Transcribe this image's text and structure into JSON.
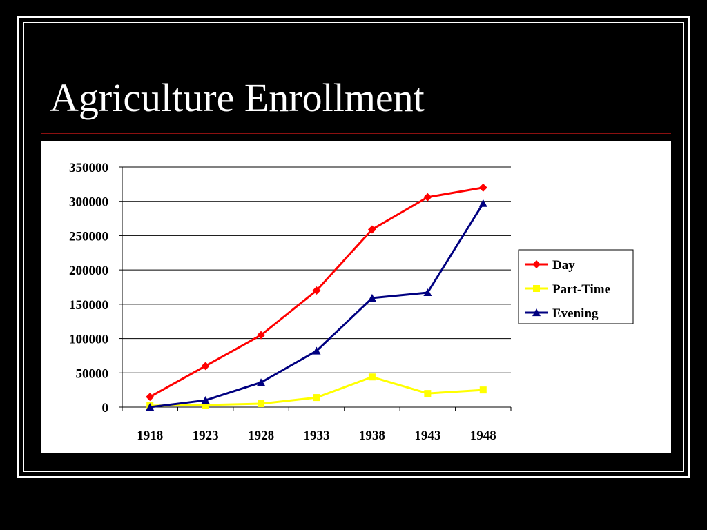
{
  "slide": {
    "title": "Agriculture Enrollment"
  },
  "colors": {
    "background": "#000000",
    "frame": "#ffffff",
    "title_rule": "#8b1010",
    "panel": "#ffffff"
  },
  "chart_data": {
    "type": "line",
    "x": [
      "1918",
      "1923",
      "1928",
      "1933",
      "1938",
      "1943",
      "1948"
    ],
    "ylim": [
      0,
      350000
    ],
    "yticks": [
      0,
      50000,
      100000,
      150000,
      200000,
      250000,
      300000,
      350000
    ],
    "grid": true,
    "legend_position": "right",
    "series": [
      {
        "name": "Day",
        "color": "#ff0000",
        "marker": "diamond",
        "values": [
          15000,
          60000,
          105000,
          170000,
          259000,
          306000,
          320000
        ]
      },
      {
        "name": "Part-Time",
        "color": "#ffff00",
        "marker": "square",
        "values": [
          2000,
          3000,
          5000,
          14000,
          44000,
          20000,
          25000
        ]
      },
      {
        "name": "Evening",
        "color": "#000080",
        "marker": "triangle",
        "values": [
          0,
          10000,
          36000,
          82000,
          159000,
          167000,
          297000
        ]
      }
    ]
  }
}
